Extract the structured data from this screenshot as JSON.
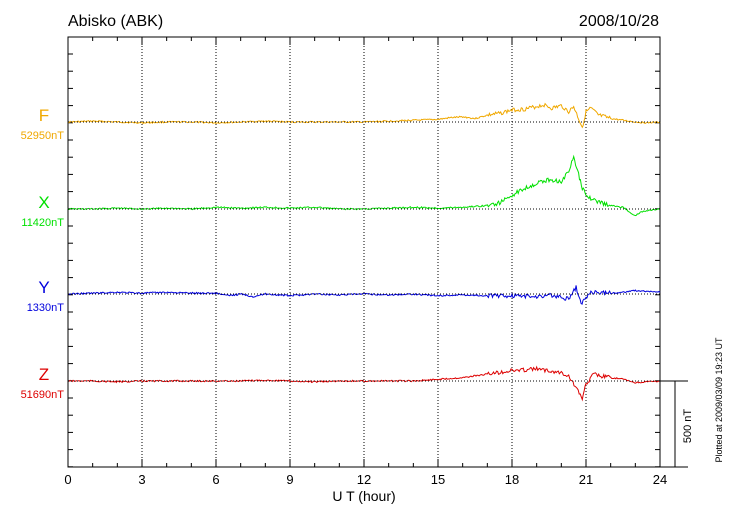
{
  "chart_data": {
    "type": "line",
    "title": "Abisko (ABK)",
    "date": "2008/10/28",
    "xlabel": "U T (hour)",
    "xlim": [
      0,
      24
    ],
    "xticks": [
      "0",
      "3",
      "6",
      "9",
      "12",
      "15",
      "18",
      "21",
      "24"
    ],
    "scale_bar_label": "500 nT",
    "scale_bar_nt": 500,
    "footnote": "Plotted at 2009/03/09 19:23 UT",
    "grid": true,
    "series": [
      {
        "name": "F",
        "baseline": "52950nT",
        "color": "#f0a800",
        "x": [
          0,
          1,
          2,
          3,
          4,
          5,
          6,
          7,
          8,
          9,
          10,
          11,
          12,
          13,
          14,
          15,
          15.5,
          16,
          16.5,
          17,
          17.5,
          18,
          18.5,
          19,
          19.3,
          19.6,
          20,
          20.3,
          20.5,
          20.7,
          20.85,
          21,
          21.2,
          21.5,
          22,
          22.5,
          23,
          23.5,
          24
        ],
        "values": [
          0,
          5,
          0,
          -5,
          0,
          0,
          -5,
          0,
          5,
          0,
          0,
          0,
          0,
          5,
          10,
          15,
          25,
          30,
          20,
          40,
          50,
          70,
          75,
          90,
          100,
          80,
          95,
          60,
          90,
          20,
          -30,
          60,
          80,
          40,
          20,
          10,
          0,
          -5,
          0
        ]
      },
      {
        "name": "X",
        "baseline": "11420nT",
        "color": "#00e000",
        "x": [
          0,
          1,
          2,
          3,
          4,
          5,
          6,
          7,
          8,
          9,
          10,
          11,
          12,
          13,
          14,
          15,
          16,
          17,
          17.5,
          18,
          18.5,
          19,
          19.5,
          20,
          20.3,
          20.5,
          20.7,
          20.85,
          21,
          21.2,
          21.5,
          22,
          22.5,
          23,
          23.2,
          23.5,
          24
        ],
        "values": [
          0,
          0,
          5,
          0,
          5,
          0,
          10,
          5,
          10,
          5,
          10,
          0,
          0,
          5,
          10,
          5,
          10,
          20,
          35,
          80,
          120,
          150,
          170,
          160,
          220,
          300,
          200,
          120,
          90,
          60,
          40,
          20,
          10,
          -40,
          -20,
          -10,
          0
        ]
      },
      {
        "name": "Y",
        "baseline": "1330nT",
        "color": "#0000dd",
        "x": [
          0,
          1,
          2,
          3,
          4,
          5,
          6,
          6.5,
          7,
          7.5,
          8,
          9,
          10,
          11,
          12,
          13,
          14,
          15,
          16,
          17,
          18,
          19,
          19.5,
          20,
          20.3,
          20.6,
          20.8,
          21,
          21.2,
          21.5,
          22,
          22.5,
          23,
          23.5,
          24
        ],
        "values": [
          0,
          5,
          10,
          5,
          10,
          5,
          5,
          -10,
          0,
          -15,
          0,
          -10,
          0,
          -5,
          0,
          -5,
          0,
          -10,
          -5,
          -10,
          -10,
          -15,
          -5,
          -20,
          -30,
          40,
          -60,
          -20,
          10,
          10,
          5,
          10,
          20,
          15,
          10
        ]
      },
      {
        "name": "Z",
        "baseline": "51690nT",
        "color": "#dd0000",
        "x": [
          0,
          1,
          2,
          3,
          4,
          5,
          6,
          7,
          8,
          9,
          10,
          11,
          12,
          13,
          14,
          15,
          16,
          17,
          17.5,
          18,
          18.5,
          19,
          19.5,
          20,
          20.3,
          20.6,
          20.85,
          21,
          21.3,
          21.6,
          22,
          22.5,
          23,
          23.5,
          24
        ],
        "values": [
          0,
          0,
          -5,
          0,
          0,
          0,
          0,
          0,
          5,
          0,
          -5,
          0,
          0,
          0,
          0,
          10,
          20,
          40,
          50,
          60,
          65,
          70,
          60,
          50,
          30,
          -40,
          -100,
          -20,
          40,
          30,
          20,
          10,
          -10,
          -5,
          0
        ]
      }
    ]
  }
}
